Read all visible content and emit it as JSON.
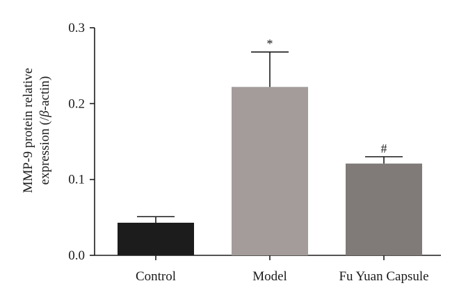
{
  "chart_data": {
    "type": "bar",
    "title": "",
    "ylabel_line1": "MMP-9 protein relative",
    "ylabel_line2_pre": "expression (/",
    "ylabel_line2_greek": "β",
    "ylabel_line2_post": "-actin)",
    "ylim": [
      0,
      0.3
    ],
    "yticks": [
      "0.0",
      "0.1",
      "0.2",
      "0.3"
    ],
    "ytick_values": [
      0.0,
      0.1,
      0.2,
      0.3
    ],
    "categories": [
      "Control",
      "Model",
      "Fu Yuan Capsule"
    ],
    "values": [
      0.043,
      0.222,
      0.121
    ],
    "errors": [
      0.008,
      0.046,
      0.009
    ],
    "annotations": [
      "",
      "*",
      "#"
    ],
    "colors": [
      "#1c1c1c",
      "#a39c9b",
      "#807a78"
    ],
    "grid": false,
    "legend": "none"
  }
}
